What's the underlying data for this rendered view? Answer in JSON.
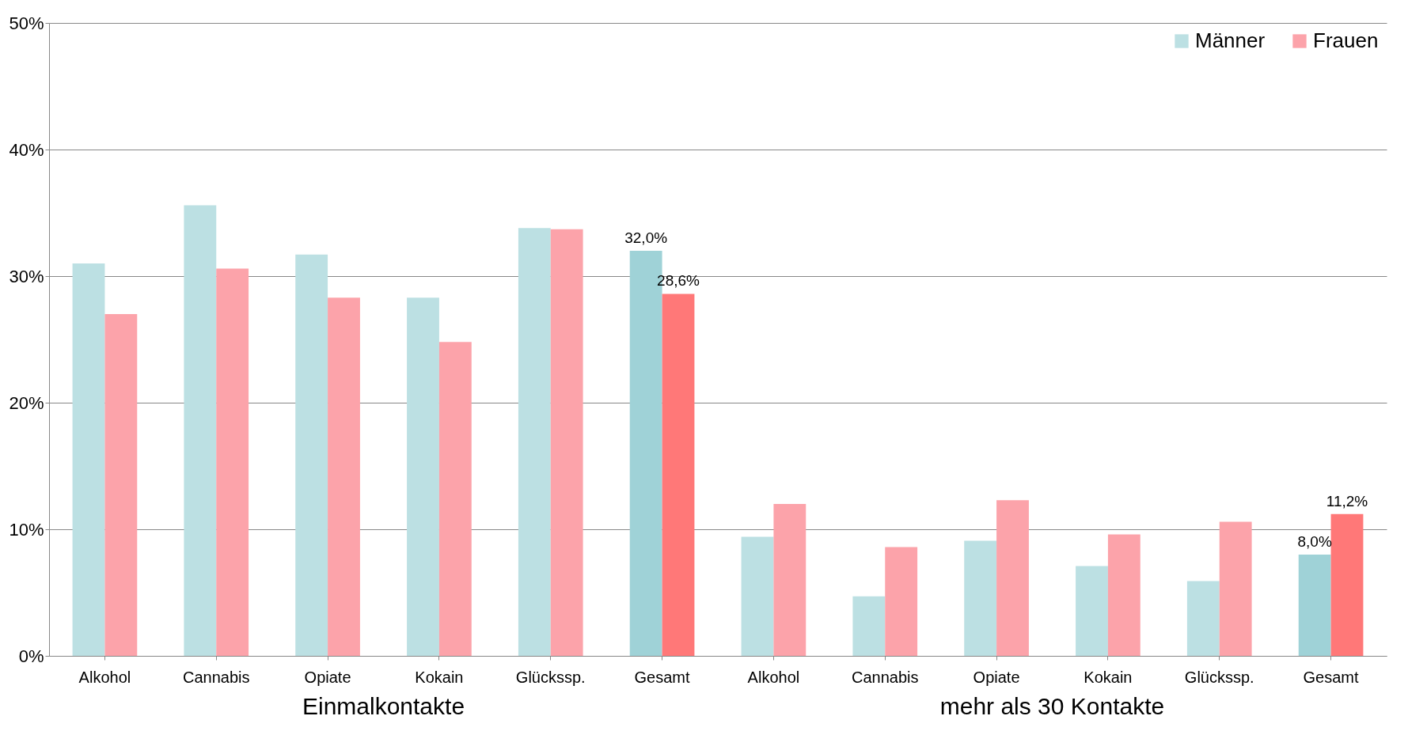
{
  "chart_data": {
    "type": "bar",
    "categories": [
      "Alkohol",
      "Cannabis",
      "Opiate",
      "Kokain",
      "Glückssp.",
      "Gesamt",
      "Alkohol",
      "Cannabis",
      "Opiate",
      "Kokain",
      "Glückssp.",
      "Gesamt"
    ],
    "series": [
      {
        "name": "Männer",
        "color": "#bce0e3",
        "colors": [
          "#bce0e3",
          "#bce0e3",
          "#bce0e3",
          "#bce0e3",
          "#bce0e3",
          "#9fd2d7",
          "#bce0e3",
          "#bce0e3",
          "#bce0e3",
          "#bce0e3",
          "#bce0e3",
          "#9fd2d7"
        ],
        "values": [
          31.0,
          35.6,
          31.7,
          28.3,
          33.8,
          32.0,
          9.4,
          4.7,
          9.1,
          7.1,
          5.9,
          8.0
        ],
        "value_labels": [
          null,
          null,
          null,
          null,
          null,
          "32,0%",
          null,
          null,
          null,
          null,
          null,
          "8,0%"
        ]
      },
      {
        "name": "Frauen",
        "color": "#fca3aa",
        "colors": [
          "#fca3aa",
          "#fca3aa",
          "#fca3aa",
          "#fca3aa",
          "#fca3aa",
          "#ff7878",
          "#fca3aa",
          "#fca3aa",
          "#fca3aa",
          "#fca3aa",
          "#fca3aa",
          "#ff7878"
        ],
        "values": [
          27.0,
          30.6,
          28.3,
          24.8,
          33.7,
          28.6,
          12.0,
          8.6,
          12.3,
          9.6,
          10.6,
          11.2
        ],
        "value_labels": [
          null,
          null,
          null,
          null,
          null,
          "28,6%",
          null,
          null,
          null,
          null,
          null,
          "11,2%"
        ]
      }
    ],
    "ylim": [
      0,
      50
    ],
    "yticks": [
      {
        "value": 0,
        "label": "0%"
      },
      {
        "value": 10,
        "label": "10%"
      },
      {
        "value": 20,
        "label": "20%"
      },
      {
        "value": 30,
        "label": "30%"
      },
      {
        "value": 40,
        "label": "40%"
      },
      {
        "value": 50,
        "label": "50%"
      }
    ],
    "grid": "y",
    "legend": "top right",
    "annotations": [
      "Einmalkontakte",
      "mehr als 30 Kontakte"
    ]
  }
}
